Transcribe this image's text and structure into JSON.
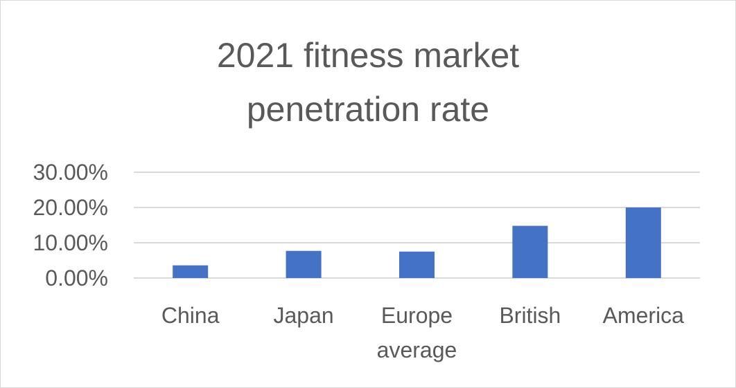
{
  "chart_data": {
    "type": "bar",
    "title_lines": [
      "2021 fitness market",
      "penetration rate"
    ],
    "categories": [
      [
        "China"
      ],
      [
        "Japan"
      ],
      [
        "Europe",
        "average"
      ],
      [
        "British"
      ],
      [
        "America"
      ]
    ],
    "values": [
      3.6,
      7.7,
      7.5,
      14.8,
      20.0
    ],
    "value_unit": "%",
    "ylim": [
      0,
      30
    ],
    "y_ticks": [
      {
        "value": 0,
        "label": "0.00%"
      },
      {
        "value": 10,
        "label": "10.00%"
      },
      {
        "value": 20,
        "label": "20.00%"
      },
      {
        "value": 30,
        "label": "30.00%"
      }
    ],
    "xlabel": "",
    "ylabel": "",
    "grid": true,
    "legend": "none",
    "bar_color": "#4472c4",
    "gridline_color": "#d9d9d9"
  }
}
